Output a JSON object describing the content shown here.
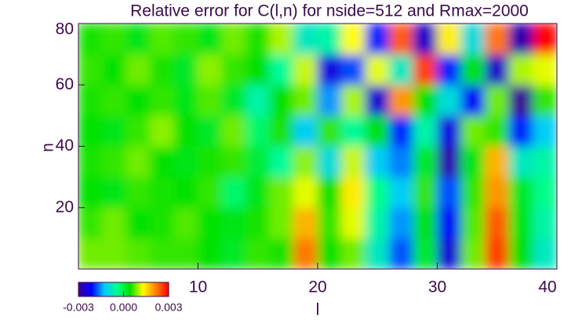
{
  "chart_data": {
    "type": "heatmap",
    "title": "Relative error for C(l,n) for nside=512 and Rmax=2000",
    "x_label": "l",
    "y_label": "n",
    "x": [
      1,
      3,
      5,
      7,
      9,
      11,
      13,
      15,
      17,
      19,
      21,
      23,
      25,
      27,
      29,
      31,
      33,
      35,
      37,
      39
    ],
    "y": [
      5,
      15,
      25,
      35,
      45,
      55,
      65,
      75
    ],
    "z": [
      [
        0.0008,
        0.0008,
        0.0007,
        0.0006,
        0.0006,
        0.0004,
        0.0002,
        0.0006,
        0.0005,
        0.0022,
        0.0004,
        0.0008,
        -0.0008,
        -0.0018,
        0.0002,
        -0.0025,
        0.0008,
        0.0026,
        0.0004,
        -0.0008
      ],
      [
        0.0006,
        0.0008,
        0.0004,
        0.0005,
        0.0007,
        0.0004,
        0.0003,
        0.0005,
        0.0008,
        0.0018,
        0.0006,
        0.0012,
        -0.0006,
        -0.0015,
        0.0004,
        -0.0022,
        0.0007,
        0.0024,
        0.0003,
        -0.0006
      ],
      [
        0.0004,
        0.0003,
        0.0006,
        0.0005,
        0.0004,
        0.0006,
        -0.0002,
        0.0003,
        0.0008,
        0.0012,
        0.0004,
        0.0014,
        -0.0004,
        -0.0012,
        0.0006,
        -0.0018,
        0.0006,
        0.002,
        0.0002,
        -0.0004
      ],
      [
        0.0005,
        0.0006,
        0.0008,
        0.0004,
        0.0003,
        0.0005,
        0.0006,
        0.0001,
        -0.0005,
        0.0009,
        -0.001,
        0.0011,
        -0.0012,
        -0.0016,
        0.0002,
        -0.0028,
        0.0003,
        0.0018,
        -0.0008,
        -0.0006
      ],
      [
        0.0004,
        0.0003,
        0.0006,
        0.0009,
        0.0004,
        0.0002,
        0.0008,
        -0.0002,
        0.0005,
        -0.0012,
        0.0006,
        -0.0005,
        0.0004,
        -0.002,
        -0.0006,
        -0.0024,
        0.0008,
        0.0006,
        -0.002,
        -0.0012
      ],
      [
        0.0005,
        0.0006,
        0.0004,
        0.0006,
        0.0003,
        0.0007,
        0.0002,
        -0.0006,
        0.0004,
        0.0008,
        -0.0015,
        0.001,
        -0.0025,
        0.002,
        0.0004,
        -0.001,
        -0.0022,
        0.0008,
        -0.003,
        0.0006
      ],
      [
        0.0006,
        0.0004,
        0.0008,
        0.0005,
        0.0002,
        0.0009,
        0.0006,
        0.0004,
        -0.0005,
        0.0011,
        -0.0024,
        -0.0018,
        0.0012,
        -0.0008,
        0.0026,
        -0.002,
        0.0004,
        -0.0026,
        0.001,
        0.0012
      ],
      [
        0.0005,
        0.0006,
        0.0003,
        0.0007,
        0.0006,
        0.0003,
        0.0008,
        0.0005,
        0.001,
        -0.0008,
        -0.0006,
        0.0013,
        -0.002,
        0.0024,
        -0.0026,
        0.0014,
        -0.001,
        0.0022,
        -0.0028,
        0.003
      ]
    ],
    "xlim": [
      0,
      40
    ],
    "ylim": [
      0,
      80
    ],
    "xticks": [
      10,
      20,
      30,
      40
    ],
    "yticks": [
      20,
      40,
      60,
      80
    ],
    "zlim": [
      -0.003,
      0.003
    ],
    "colorbar_ticks": [
      -0.003,
      {
        "value": 0,
        "label": "0.000"
      },
      0.003
    ],
    "colormap": [
      "#3c0096",
      "#0000ff",
      "#00c8ff",
      "#00ff90",
      "#00e000",
      "#ffff00",
      "#ff8000",
      "#ff0000"
    ]
  }
}
